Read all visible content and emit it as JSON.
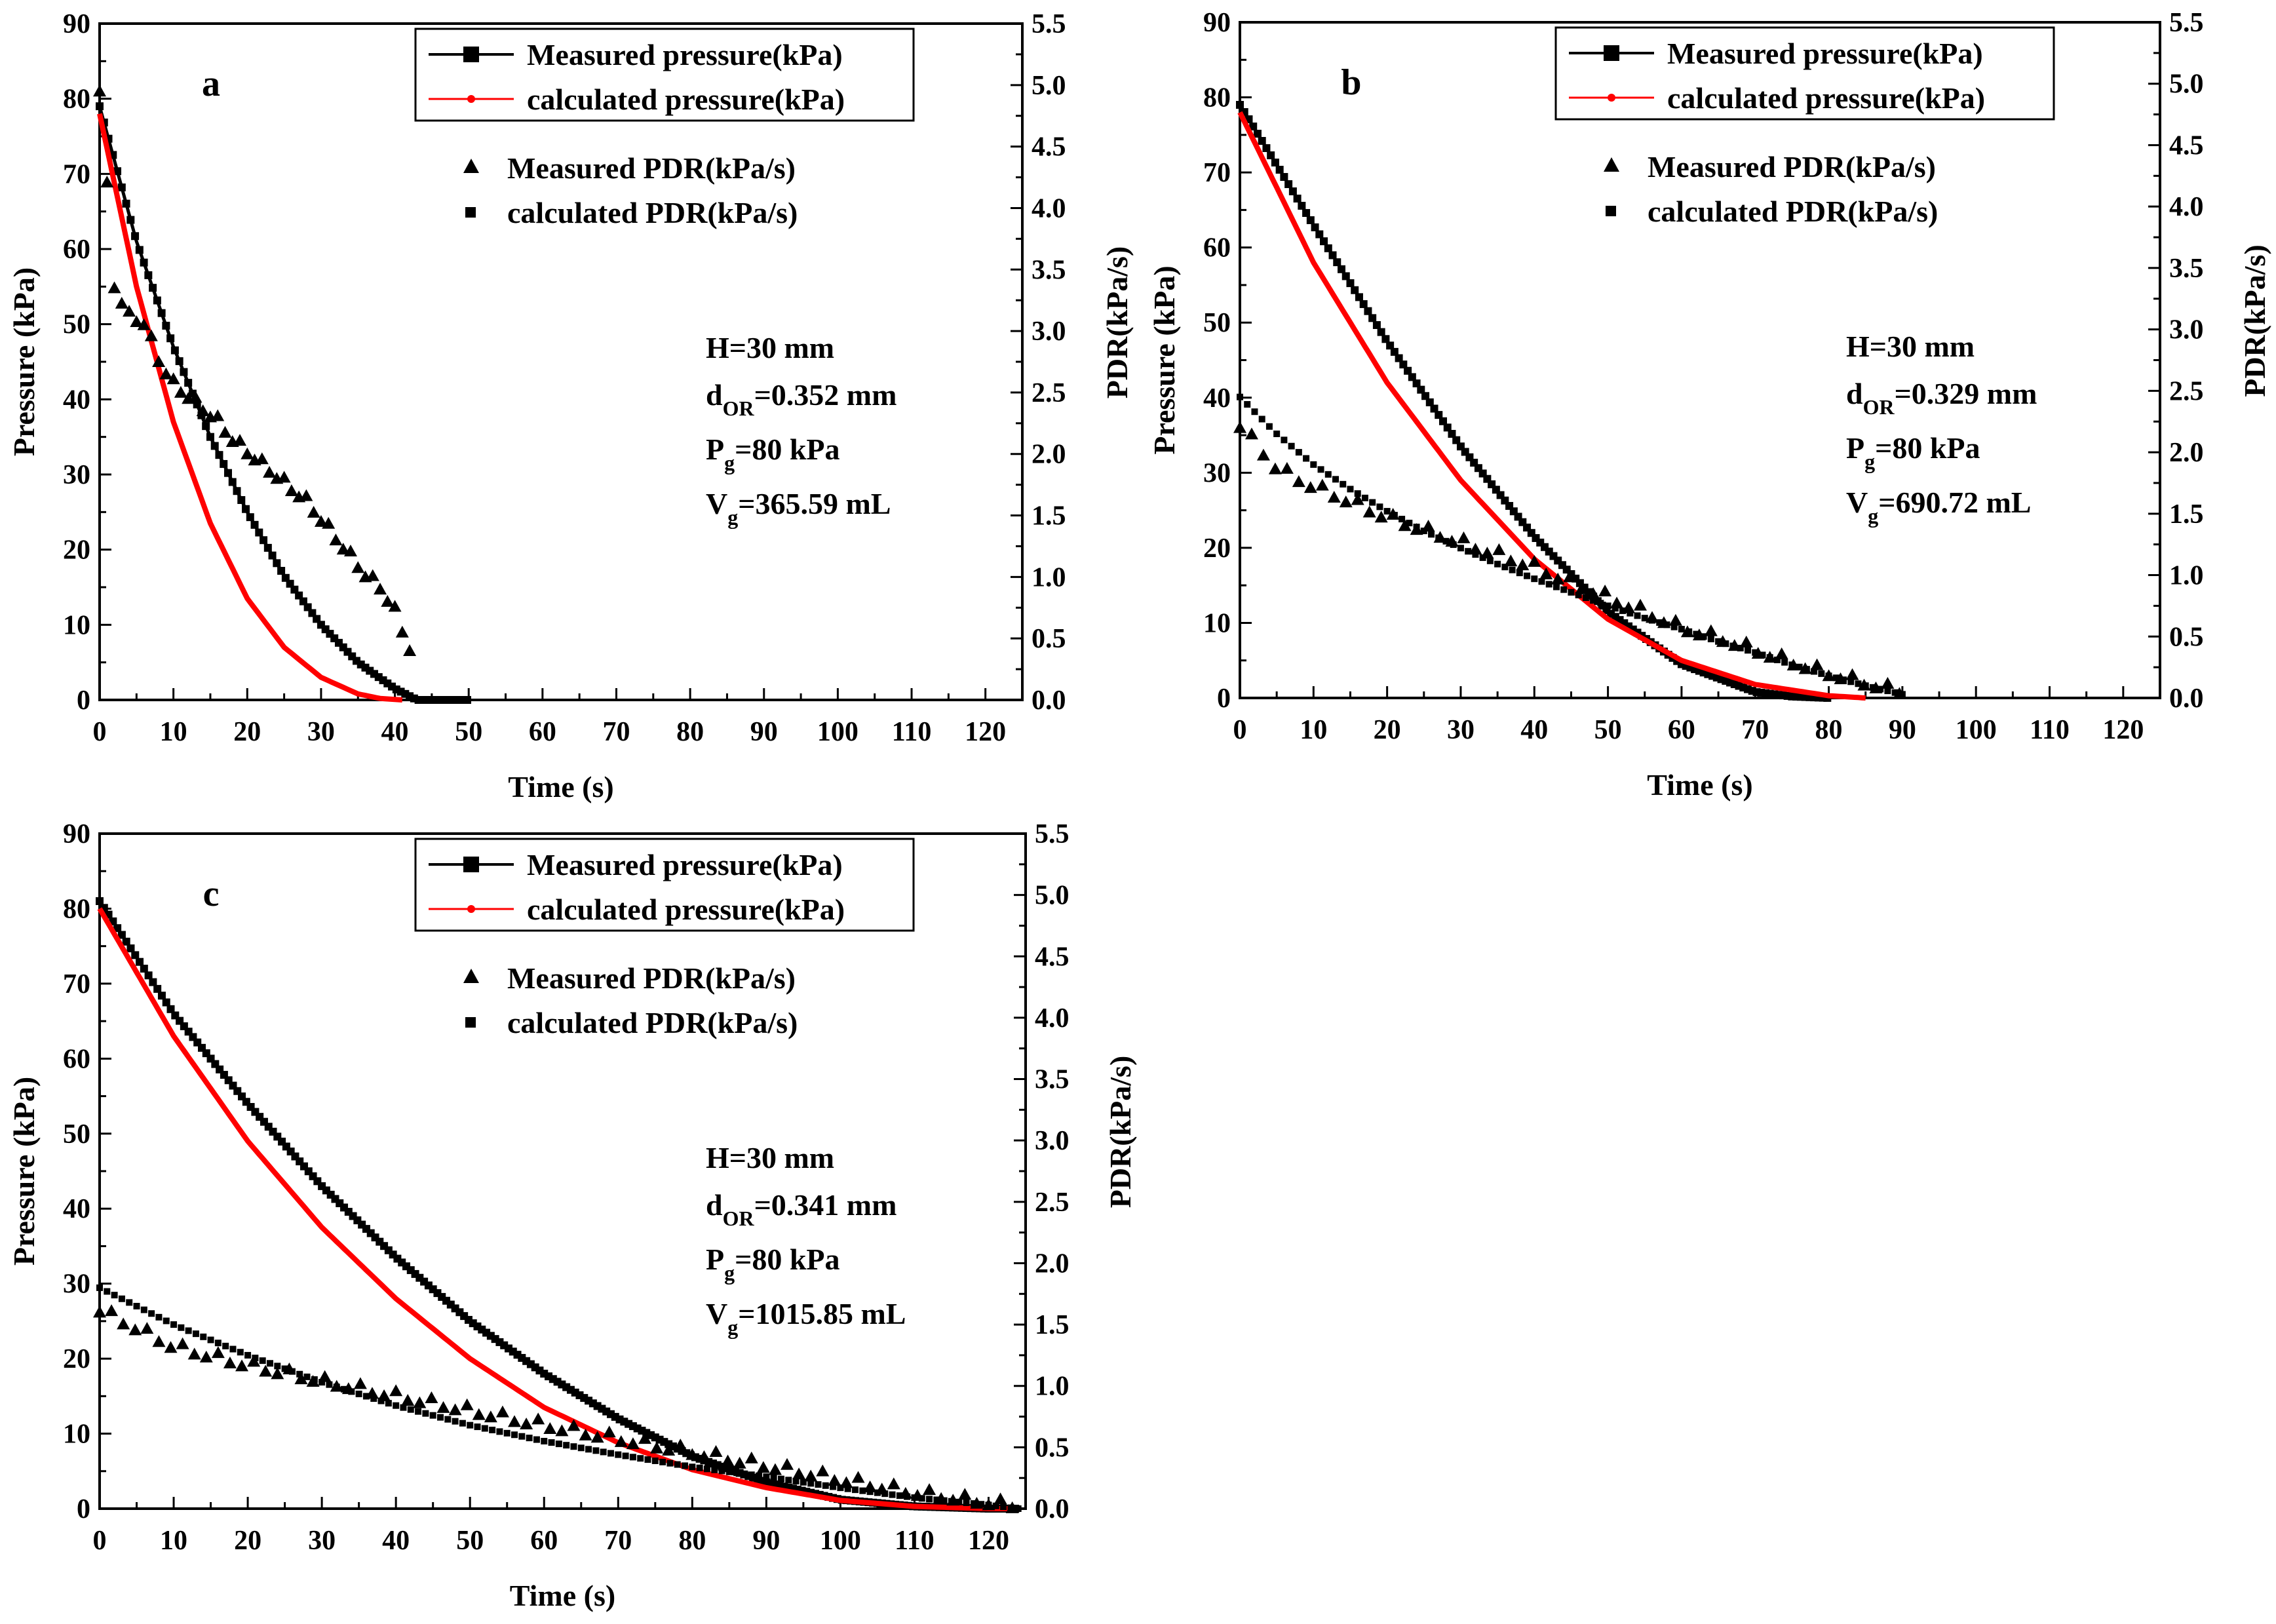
{
  "chart_data": [
    {
      "type": "line",
      "panel_label": "a",
      "xlabel": "Time (s)",
      "ylabel": "Pressure (kPa)",
      "y2label": "PDR(kPa/s)",
      "xlim": [
        0,
        125
      ],
      "ylim": [
        0,
        90
      ],
      "y2lim": [
        0,
        5.5
      ],
      "xticks": [
        "0",
        "10",
        "20",
        "30",
        "40",
        "50",
        "60",
        "70",
        "80",
        "90",
        "100",
        "110",
        "120"
      ],
      "yticks": [
        "0",
        "10",
        "20",
        "30",
        "40",
        "50",
        "60",
        "70",
        "80",
        "90"
      ],
      "y2ticks": [
        "0.0",
        "0.5",
        "1.0",
        "1.5",
        "2.0",
        "2.5",
        "3.0",
        "3.5",
        "4.0",
        "4.5",
        "5.0",
        "5.5"
      ],
      "legend": {
        "placement": "top-right",
        "entries": [
          "Measured pressure(kPa)",
          "calculated pressure(kPa)",
          "Measured PDR(kPa/s)",
          "calculated PDR(kPa/s)"
        ]
      },
      "annotation": {
        "line1": "H=30 mm",
        "line2_main": "d",
        "line2_sub": "OR",
        "line2_rest": "=0.352 mm",
        "line3_main": "P",
        "line3_sub": "g",
        "line3_rest": "=80 kPa",
        "line4_main": "V",
        "line4_sub": "g",
        "line4_rest": "=365.59 mL"
      },
      "series": [
        {
          "name": "Measured pressure(kPa)",
          "axis": "left",
          "color": "#000000",
          "marker": "square",
          "x": [
            0,
            5,
            10,
            15,
            20,
            25,
            30,
            35,
            40,
            43,
            50
          ],
          "y": [
            79,
            61,
            47,
            35,
            25,
            16.5,
            10,
            5,
            1.5,
            0,
            0
          ]
        },
        {
          "name": "calculated pressure(kPa)",
          "axis": "left",
          "color": "#ff0000",
          "marker": "dot",
          "x": [
            0,
            5,
            10,
            15,
            20,
            25,
            30,
            35,
            38,
            41
          ],
          "y": [
            78,
            55,
            37,
            23.5,
            13.5,
            7,
            3,
            0.8,
            0.2,
            0
          ]
        },
        {
          "name": "Measured PDR(kPa/s)",
          "axis": "right",
          "color": "#000000",
          "marker": "triangle",
          "x": [
            0,
            2,
            4,
            6,
            8,
            10,
            12,
            14,
            16,
            18,
            20,
            22,
            24,
            26,
            28,
            30,
            32,
            34,
            36,
            38,
            40,
            42
          ],
          "y": [
            4.95,
            3.35,
            3.1,
            3.05,
            2.75,
            2.55,
            2.45,
            2.35,
            2.25,
            2.1,
            2.0,
            1.9,
            1.8,
            1.7,
            1.6,
            1.45,
            1.3,
            1.15,
            1.0,
            0.9,
            0.7,
            0.4
          ]
        },
        {
          "name": "calculated PDR(kPa/s)",
          "axis": "right",
          "color": "#000000",
          "marker": "square",
          "x": [],
          "y": []
        }
      ]
    },
    {
      "type": "line",
      "panel_label": "b",
      "xlabel": "Time (s)",
      "ylabel": "Pressure (kPa)",
      "y2label": "PDR(kPa/s)",
      "xlim": [
        0,
        125
      ],
      "ylim": [
        0,
        90
      ],
      "y2lim": [
        0,
        5.5
      ],
      "xticks": [
        "0",
        "10",
        "20",
        "30",
        "40",
        "50",
        "60",
        "70",
        "80",
        "90",
        "100",
        "110",
        "120"
      ],
      "yticks": [
        "0",
        "10",
        "20",
        "30",
        "40",
        "50",
        "60",
        "70",
        "80",
        "90"
      ],
      "y2ticks": [
        "0.0",
        "0.5",
        "1.0",
        "1.5",
        "2.0",
        "2.5",
        "3.0",
        "3.5",
        "4.0",
        "4.5",
        "5.0",
        "5.5"
      ],
      "legend": {
        "placement": "top-right",
        "entries": [
          "Measured pressure(kPa)",
          "calculated pressure(kPa)",
          "Measured PDR(kPa/s)",
          "calculated PDR(kPa/s)"
        ]
      },
      "annotation": {
        "line1": "H=30 mm",
        "line2_main": "d",
        "line2_sub": "OR",
        "line2_rest": "=0.329 mm",
        "line3_main": "P",
        "line3_sub": "g",
        "line3_rest": "=80 kPa",
        "line4_main": "V",
        "line4_sub": "g",
        "line4_rest": "=690.72 mL"
      },
      "series": [
        {
          "name": "Measured pressure(kPa)",
          "axis": "left",
          "color": "#000000",
          "marker": "square",
          "x": [
            0,
            10,
            20,
            30,
            40,
            50,
            60,
            70,
            75,
            80
          ],
          "y": [
            79,
            63,
            47.5,
            33.5,
            21.5,
            11.5,
            4.5,
            0.8,
            0.2,
            0
          ]
        },
        {
          "name": "calculated pressure(kPa)",
          "axis": "left",
          "color": "#ff0000",
          "marker": "dot",
          "x": [
            0,
            10,
            20,
            30,
            40,
            50,
            60,
            70,
            80,
            85
          ],
          "y": [
            78,
            58,
            42,
            29,
            18.5,
            10.5,
            5,
            1.8,
            0.3,
            0
          ]
        },
        {
          "name": "Measured PDR(kPa/s)",
          "axis": "right",
          "color": "#000000",
          "marker": "triangle",
          "x": [
            0,
            5,
            10,
            15,
            20,
            25,
            30,
            35,
            40,
            45,
            50,
            55,
            60,
            65,
            70,
            75,
            80,
            85,
            90
          ],
          "y": [
            2.2,
            1.85,
            1.7,
            1.58,
            1.45,
            1.35,
            1.25,
            1.15,
            1.05,
            0.92,
            0.8,
            0.68,
            0.55,
            0.47,
            0.37,
            0.27,
            0.18,
            0.1,
            0.03
          ]
        },
        {
          "name": "calculated PDR(kPa/s)",
          "axis": "right",
          "color": "#000000",
          "marker": "square",
          "x": [
            0,
            5,
            10,
            15,
            20,
            25,
            30,
            35,
            40,
            45,
            50,
            55,
            60,
            65,
            70,
            75,
            80,
            85,
            90
          ],
          "y": [
            2.45,
            2.15,
            1.9,
            1.7,
            1.52,
            1.36,
            1.22,
            1.09,
            0.97,
            0.86,
            0.75,
            0.65,
            0.56,
            0.46,
            0.37,
            0.27,
            0.18,
            0.1,
            0.03
          ]
        }
      ]
    },
    {
      "type": "line",
      "panel_label": "c",
      "xlabel": "Time (s)",
      "ylabel": "Pressure (kPa)",
      "y2label": "PDR(kPa/s)",
      "xlim": [
        0,
        125
      ],
      "ylim": [
        0,
        90
      ],
      "y2lim": [
        0,
        5.5
      ],
      "xticks": [
        "0",
        "10",
        "20",
        "30",
        "40",
        "50",
        "60",
        "70",
        "80",
        "90",
        "100",
        "110",
        "120"
      ],
      "yticks": [
        "0",
        "10",
        "20",
        "30",
        "40",
        "50",
        "60",
        "70",
        "80",
        "90"
      ],
      "y2ticks": [
        "0.0",
        "0.5",
        "1.0",
        "1.5",
        "2.0",
        "2.5",
        "3.0",
        "3.5",
        "4.0",
        "4.5",
        "5.0",
        "5.5"
      ],
      "legend": {
        "placement": "top-right",
        "entries": [
          "Measured pressure(kPa)",
          "calculated pressure(kPa)",
          "Measured PDR(kPa/s)",
          "calculated PDR(kPa/s)"
        ]
      },
      "annotation": {
        "line1": "H=30 mm",
        "line2_main": "d",
        "line2_sub": "OR",
        "line2_rest": "=0.341 mm",
        "line3_main": "P",
        "line3_sub": "g",
        "line3_rest": "=80 kPa",
        "line4_main": "V",
        "line4_sub": "g",
        "line4_rest": "=1015.85 mL"
      },
      "series": [
        {
          "name": "Measured pressure(kPa)",
          "axis": "left",
          "color": "#000000",
          "marker": "square",
          "x": [
            0,
            10,
            20,
            30,
            40,
            50,
            60,
            70,
            80,
            90,
            100,
            110,
            120,
            124
          ],
          "y": [
            81,
            66,
            54,
            43,
            33.5,
            25,
            18,
            12,
            7,
            3.5,
            1.2,
            0.3,
            0,
            0
          ]
        },
        {
          "name": "calculated pressure(kPa)",
          "axis": "left",
          "color": "#ff0000",
          "marker": "dot",
          "x": [
            0,
            10,
            20,
            30,
            40,
            50,
            60,
            70,
            80,
            90,
            100,
            110,
            120,
            124
          ],
          "y": [
            80,
            63,
            49,
            37.5,
            28,
            20,
            13.5,
            8.8,
            5.2,
            2.8,
            1.1,
            0.3,
            0,
            0
          ]
        },
        {
          "name": "Measured PDR(kPa/s)",
          "axis": "right",
          "color": "#000000",
          "marker": "triangle",
          "x": [
            0,
            10,
            20,
            30,
            40,
            50,
            60,
            70,
            80,
            90,
            100,
            110,
            120,
            124
          ],
          "y": [
            1.6,
            1.3,
            1.15,
            1.02,
            0.9,
            0.78,
            0.66,
            0.55,
            0.44,
            0.33,
            0.22,
            0.11,
            0.03,
            0.0
          ]
        },
        {
          "name": "calculated PDR(kPa/s)",
          "axis": "right",
          "color": "#000000",
          "marker": "square",
          "x": [
            0,
            10,
            20,
            30,
            40,
            50,
            60,
            70,
            80,
            90,
            100,
            110,
            120,
            124
          ],
          "y": [
            1.8,
            1.5,
            1.25,
            1.03,
            0.84,
            0.68,
            0.55,
            0.44,
            0.34,
            0.26,
            0.17,
            0.09,
            0.03,
            0.0
          ]
        }
      ]
    }
  ]
}
